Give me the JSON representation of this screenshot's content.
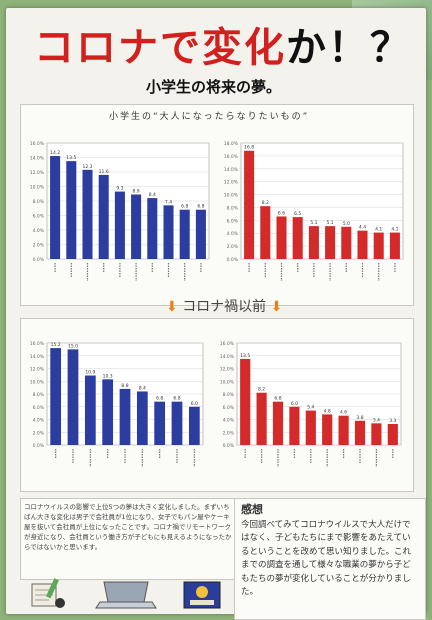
{
  "poster": {
    "title_part1": "コロナで",
    "title_part2": "変化",
    "title_part3": "か！？",
    "subtitle": "小学生の将来の夢。",
    "top_heading": "小学生の“大人になったらなりたいもの”",
    "divider_text": "コロナ禍以前",
    "colors": {
      "boys_bar": "#2b3ea0",
      "girls_bar": "#d42a2a",
      "accent": "#e8801a",
      "title_red": "#d2201f"
    }
  },
  "notes": {
    "left_text": "コロナウイルスの影響で上位5つの夢は大きく変化しました。まずいちばん大きな変化は男子で会社員が1位になり、女子でもパン屋やケーキ屋を抜いて会社員が上位になったことです。コロナ禍でリモートワークが身近になり、会社員という働き方が子どもにも見えるようになったからではないかと思います。"
  },
  "impression": {
    "title": "感想",
    "text": "今回調べてみてコロナウイルスで大人だけではなく、子どもたちにまで影響をあたえているということを改めて思い知りました。これまでの調査を通して様々な職業の夢から子どもたちの夢が変化していることが分かりました。"
  },
  "chart_data": [
    {
      "type": "bar",
      "title": "",
      "position": "top-left",
      "categories": [
        "",
        "",
        "",
        "",
        "",
        "",
        "",
        "",
        "",
        ""
      ],
      "values": [
        14.2,
        13.5,
        12.3,
        11.6,
        9.3,
        8.9,
        8.4,
        7.4,
        6.8,
        6.8
      ],
      "value_labels": [
        "14.2",
        "13.5",
        "12.3",
        "11.6",
        "9.3",
        "8.9",
        "8.4",
        "7.4",
        "6.8",
        "6.8"
      ],
      "ylim": [
        0,
        16
      ],
      "grid": true
    },
    {
      "type": "bar",
      "title": "",
      "position": "top-right",
      "categories": [
        "",
        "",
        "",
        "",
        "",
        "",
        "",
        "",
        "",
        ""
      ],
      "values": [
        16.8,
        8.2,
        6.6,
        6.5,
        5.1,
        5.1,
        5.0,
        4.4,
        4.1,
        4.1
      ],
      "value_labels": [
        "16.8",
        "8.2",
        "6.6",
        "6.5",
        "5.1",
        "5.1",
        "5.0",
        "4.4",
        "4.1",
        "4.1"
      ],
      "ylim": [
        0,
        18
      ],
      "grid": true
    },
    {
      "type": "bar",
      "title": "",
      "position": "bottom-left",
      "categories": [
        "",
        "",
        "",
        "",
        "",
        "",
        "",
        "",
        ""
      ],
      "values": [
        15.2,
        15.0,
        10.9,
        10.3,
        8.8,
        8.4,
        6.8,
        6.8,
        6.0
      ],
      "value_labels": [
        "15.2",
        "15.0",
        "10.9",
        "10.3",
        "8.8",
        "8.4",
        "6.8",
        "6.8",
        "6.0"
      ],
      "ylim": [
        0,
        16
      ],
      "grid": true
    },
    {
      "type": "bar",
      "title": "",
      "position": "bottom-right",
      "categories": [
        "",
        "",
        "",
        "",
        "",
        "",
        "",
        "",
        "",
        ""
      ],
      "values": [
        13.5,
        8.2,
        6.8,
        6.0,
        5.4,
        4.8,
        4.6,
        3.8,
        3.4,
        3.3
      ],
      "value_labels": [
        "13.5",
        "8.2",
        "6.8",
        "6.0",
        "5.4",
        "4.8",
        "4.6",
        "3.8",
        "3.4",
        "3.3"
      ],
      "ylim": [
        0,
        16
      ],
      "grid": true
    }
  ]
}
